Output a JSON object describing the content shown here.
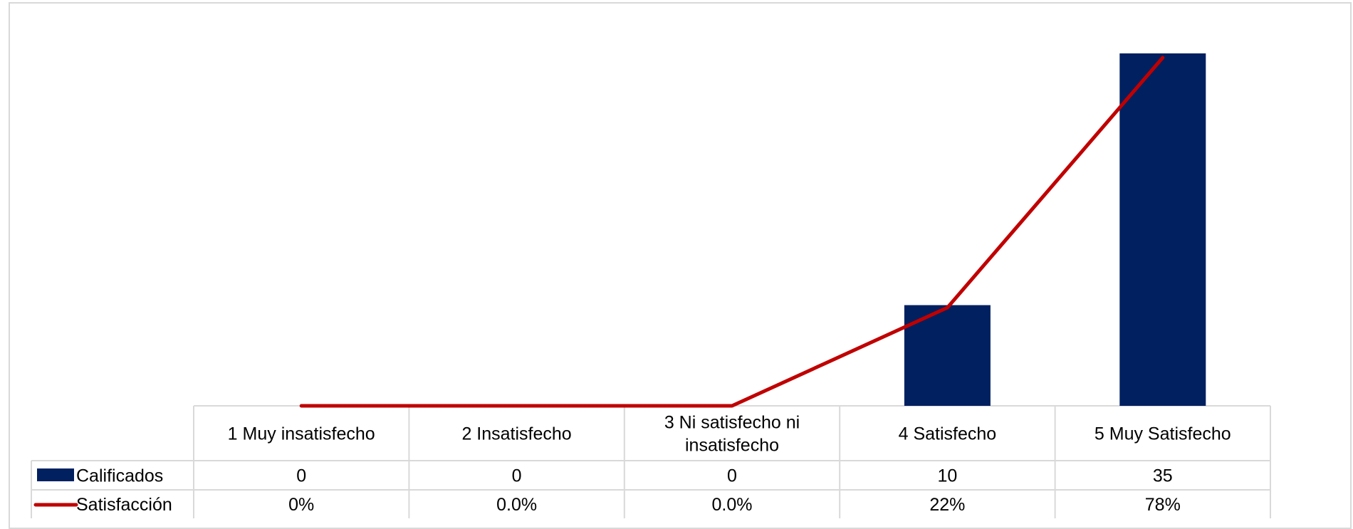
{
  "chart_data": {
    "type": "bar",
    "categories": [
      [
        "1 Muy insatisfecho"
      ],
      [
        "2 Insatisfecho"
      ],
      [
        "3 Ni satisfecho ni",
        "insatisfecho"
      ],
      [
        "4 Satisfecho"
      ],
      [
        "5 Muy Satisfecho"
      ]
    ],
    "series": [
      {
        "name": "Calificados",
        "type": "bar",
        "color": "#002060",
        "values": [
          0,
          0,
          0,
          10,
          35
        ],
        "labels": [
          "0",
          "0",
          "0",
          "10",
          "35"
        ]
      },
      {
        "name": "Satisfacción",
        "type": "line",
        "color": "#c00000",
        "values": [
          0,
          0,
          0,
          0.22,
          0.78
        ],
        "labels": [
          "0%",
          "0.0%",
          "0.0%",
          "22%",
          "78%"
        ]
      }
    ],
    "ylim": [
      0,
      35
    ],
    "y2lim": [
      0,
      0.78
    ],
    "grid": false,
    "legend": "data-table-left"
  }
}
